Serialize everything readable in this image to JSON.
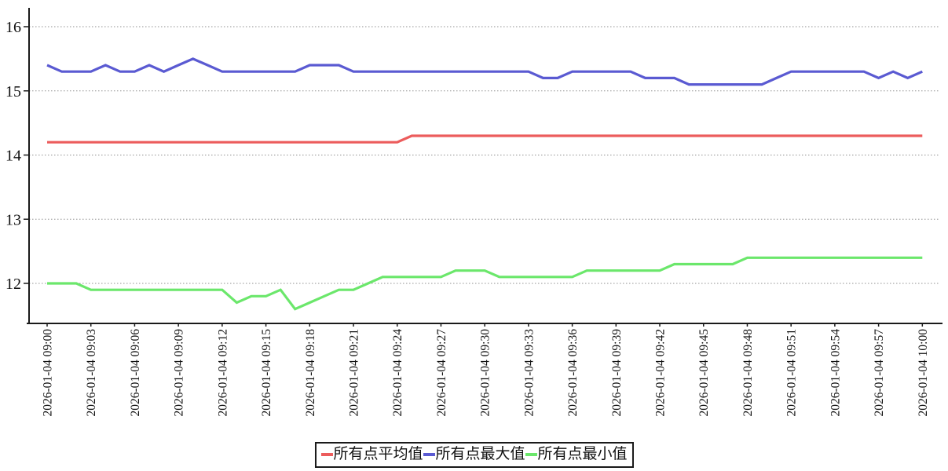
{
  "chart_data": {
    "type": "line",
    "title": "",
    "xlabel": "",
    "ylabel": "",
    "y_ticks": [
      12,
      13,
      14,
      15,
      16
    ],
    "ylim": [
      11.4,
      16.3
    ],
    "grid": "horizontal-dotted",
    "legend_position": "bottom",
    "points_per_tick": 3,
    "x_tick_labels": [
      "2026-01-04 09:00",
      "2026-01-04 09:03",
      "2026-01-04 09:06",
      "2026-01-04 09:09",
      "2026-01-04 09:12",
      "2026-01-04 09:15",
      "2026-01-04 09:18",
      "2026-01-04 09:21",
      "2026-01-04 09:24",
      "2026-01-04 09:27",
      "2026-01-04 09:30",
      "2026-01-04 09:33",
      "2026-01-04 09:36",
      "2026-01-04 09:39",
      "2026-01-04 09:42",
      "2026-01-04 09:45",
      "2026-01-04 09:48",
      "2026-01-04 09:51",
      "2026-01-04 09:54",
      "2026-01-04 09:57",
      "2026-01-04 10:00"
    ],
    "series": [
      {
        "name": "所有点平均值",
        "color": "#ec5c5c",
        "values": [
          14.2,
          14.2,
          14.2,
          14.2,
          14.2,
          14.2,
          14.2,
          14.2,
          14.2,
          14.2,
          14.2,
          14.2,
          14.2,
          14.2,
          14.2,
          14.2,
          14.2,
          14.2,
          14.2,
          14.2,
          14.2,
          14.2,
          14.2,
          14.2,
          14.2,
          14.3,
          14.3,
          14.3,
          14.3,
          14.3,
          14.3,
          14.3,
          14.3,
          14.3,
          14.3,
          14.3,
          14.3,
          14.3,
          14.3,
          14.3,
          14.3,
          14.3,
          14.3,
          14.3,
          14.3,
          14.3,
          14.3,
          14.3,
          14.3,
          14.3,
          14.3,
          14.3,
          14.3,
          14.3,
          14.3,
          14.3,
          14.3,
          14.3,
          14.3,
          14.3,
          14.3
        ]
      },
      {
        "name": "所有点最大值",
        "color": "#5a5ad2",
        "values": [
          15.4,
          15.3,
          15.3,
          15.3,
          15.4,
          15.3,
          15.3,
          15.4,
          15.3,
          15.4,
          15.5,
          15.4,
          15.3,
          15.3,
          15.3,
          15.3,
          15.3,
          15.3,
          15.4,
          15.4,
          15.4,
          15.3,
          15.3,
          15.3,
          15.3,
          15.3,
          15.3,
          15.3,
          15.3,
          15.3,
          15.3,
          15.3,
          15.3,
          15.3,
          15.2,
          15.2,
          15.3,
          15.3,
          15.3,
          15.3,
          15.3,
          15.2,
          15.2,
          15.2,
          15.1,
          15.1,
          15.1,
          15.1,
          15.1,
          15.1,
          15.2,
          15.3,
          15.3,
          15.3,
          15.3,
          15.3,
          15.3,
          15.2,
          15.3,
          15.2,
          15.3
        ]
      },
      {
        "name": "所有点最小值",
        "color": "#6be76b",
        "values": [
          12.0,
          12.0,
          12.0,
          11.9,
          11.9,
          11.9,
          11.9,
          11.9,
          11.9,
          11.9,
          11.9,
          11.9,
          11.9,
          11.7,
          11.8,
          11.8,
          11.9,
          11.6,
          11.7,
          11.8,
          11.9,
          11.9,
          12.0,
          12.1,
          12.1,
          12.1,
          12.1,
          12.1,
          12.2,
          12.2,
          12.2,
          12.1,
          12.1,
          12.1,
          12.1,
          12.1,
          12.1,
          12.2,
          12.2,
          12.2,
          12.2,
          12.2,
          12.2,
          12.3,
          12.3,
          12.3,
          12.3,
          12.3,
          12.4,
          12.4,
          12.4,
          12.4,
          12.4,
          12.4,
          12.4,
          12.4,
          12.4,
          12.4,
          12.4,
          12.4,
          12.4
        ]
      }
    ]
  },
  "colors": {
    "axis": "#1a1a1a",
    "gridline": "#909090",
    "tick_text": "#111111",
    "background": "#ffffff"
  }
}
